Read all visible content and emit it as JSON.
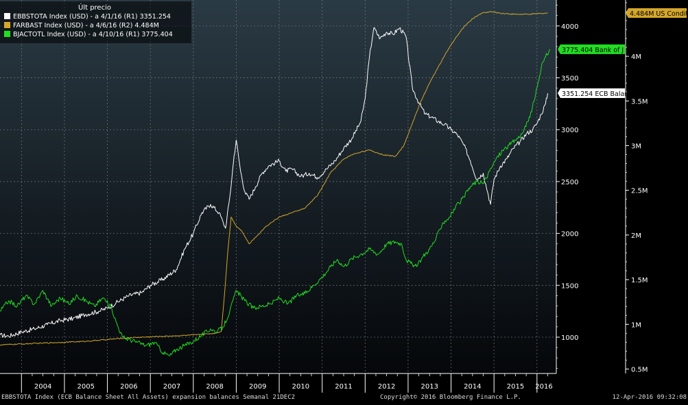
{
  "legend": {
    "header": "Últ precio",
    "items": [
      {
        "label": "EBBSTOTA Index (USD) - a 4/1/16 (R1) 3351.254",
        "color": "#ffffff"
      },
      {
        "label": "FARBAST Index (USD) - a 4/6/16 (R2) 4.484M",
        "color": "#d4a62a"
      },
      {
        "label": "BJACTOTL Index (USD) - a 4/10/16 (R1) 3775.404",
        "color": "#22dd22"
      }
    ]
  },
  "tags": [
    {
      "text": "4.484M US Condit",
      "color": "#d4a62a",
      "text_color": "#000000"
    },
    {
      "text": "3775.404 Bank of J",
      "color": "#22dd22",
      "text_color": "#000000"
    },
    {
      "text": "3351.254 ECB Balan",
      "color": "#ffffff",
      "text_color": "#000000"
    }
  ],
  "footer": {
    "left": "EBBSTOTA Index (ECB Balance Sheet All Assets) expansion balances  Semanal 21DEC2",
    "center": "Copyright© 2016 Bloomberg Finance L.P.",
    "right": "12-Apr-2016 09:32:08"
  },
  "colors": {
    "background_top": "#2a3a44",
    "background_bottom": "#05070a",
    "grid": "#7a8288"
  },
  "chart_data": {
    "type": "line",
    "x_labels": [
      "2004",
      "2005",
      "2006",
      "2007",
      "2008",
      "2009",
      "2010",
      "2011",
      "2012",
      "2013",
      "2014",
      "2015",
      "2016"
    ],
    "xlim": [
      2003.5,
      2016.45
    ],
    "grid": true,
    "legend_position": "top-left",
    "axes": {
      "r1": {
        "ticks": [
          1000,
          1500,
          2000,
          2500,
          3000,
          3500,
          4000
        ],
        "tick_labels": [
          "1000",
          "1500",
          "2000",
          "2500",
          "3000",
          "3500",
          "4000"
        ],
        "ylim": [
          650,
          4250
        ]
      },
      "r2": {
        "ticks": [
          0.5,
          1,
          1.5,
          2,
          2.5,
          3,
          3.5,
          4
        ],
        "tick_labels": [
          "0.5M",
          "1M",
          "1.5M",
          "2M",
          "2.5M",
          "3M",
          "3.5M",
          "4M"
        ],
        "ylim": [
          0.45,
          4.63
        ]
      }
    },
    "series": [
      {
        "name": "EBBSTOTA Index (USD)",
        "axis": "r1",
        "color": "#ffffff",
        "points": [
          [
            2003.5,
            1020
          ],
          [
            2003.7,
            1010
          ],
          [
            2004.0,
            1050
          ],
          [
            2004.3,
            1080
          ],
          [
            2004.6,
            1120
          ],
          [
            2004.9,
            1160
          ],
          [
            2005.2,
            1180
          ],
          [
            2005.5,
            1220
          ],
          [
            2005.8,
            1250
          ],
          [
            2006.0,
            1280
          ],
          [
            2006.2,
            1330
          ],
          [
            2006.5,
            1400
          ],
          [
            2006.8,
            1430
          ],
          [
            2007.0,
            1500
          ],
          [
            2007.3,
            1560
          ],
          [
            2007.6,
            1650
          ],
          [
            2007.8,
            1850
          ],
          [
            2008.0,
            2000
          ],
          [
            2008.2,
            2200
          ],
          [
            2008.4,
            2280
          ],
          [
            2008.6,
            2200
          ],
          [
            2008.7,
            2100
          ],
          [
            2008.75,
            2050
          ],
          [
            2008.85,
            2350
          ],
          [
            2008.95,
            2750
          ],
          [
            2009.0,
            2900
          ],
          [
            2009.1,
            2600
          ],
          [
            2009.2,
            2400
          ],
          [
            2009.3,
            2330
          ],
          [
            2009.45,
            2450
          ],
          [
            2009.6,
            2580
          ],
          [
            2009.75,
            2650
          ],
          [
            2009.9,
            2680
          ],
          [
            2010.0,
            2700
          ],
          [
            2010.15,
            2600
          ],
          [
            2010.3,
            2620
          ],
          [
            2010.5,
            2550
          ],
          [
            2010.7,
            2580
          ],
          [
            2010.9,
            2540
          ],
          [
            2011.1,
            2620
          ],
          [
            2011.3,
            2700
          ],
          [
            2011.5,
            2820
          ],
          [
            2011.7,
            2920
          ],
          [
            2011.9,
            3080
          ],
          [
            2012.0,
            3300
          ],
          [
            2012.1,
            3700
          ],
          [
            2012.2,
            3980
          ],
          [
            2012.35,
            3880
          ],
          [
            2012.5,
            3940
          ],
          [
            2012.65,
            3920
          ],
          [
            2012.8,
            3980
          ],
          [
            2012.95,
            3900
          ],
          [
            2013.1,
            3400
          ],
          [
            2013.25,
            3260
          ],
          [
            2013.4,
            3150
          ],
          [
            2013.55,
            3120
          ],
          [
            2013.7,
            3080
          ],
          [
            2013.85,
            3050
          ],
          [
            2014.0,
            3000
          ],
          [
            2014.15,
            2950
          ],
          [
            2014.3,
            2850
          ],
          [
            2014.45,
            2700
          ],
          [
            2014.6,
            2520
          ],
          [
            2014.75,
            2580
          ],
          [
            2014.85,
            2400
          ],
          [
            2014.92,
            2280
          ],
          [
            2015.0,
            2520
          ],
          [
            2015.15,
            2650
          ],
          [
            2015.3,
            2720
          ],
          [
            2015.45,
            2820
          ],
          [
            2015.6,
            2880
          ],
          [
            2015.75,
            2960
          ],
          [
            2015.9,
            3000
          ],
          [
            2016.0,
            3060
          ],
          [
            2016.1,
            3150
          ],
          [
            2016.2,
            3250
          ],
          [
            2016.25,
            3351.254
          ]
        ]
      },
      {
        "name": "FARBAST Index (USD)",
        "axis": "r2",
        "color": "#d4a62a",
        "points": [
          [
            2003.5,
            0.77
          ],
          [
            2004.0,
            0.78
          ],
          [
            2004.5,
            0.79
          ],
          [
            2005.0,
            0.8
          ],
          [
            2005.5,
            0.81
          ],
          [
            2006.0,
            0.83
          ],
          [
            2006.5,
            0.85
          ],
          [
            2007.0,
            0.86
          ],
          [
            2007.5,
            0.87
          ],
          [
            2008.0,
            0.88
          ],
          [
            2008.5,
            0.9
          ],
          [
            2008.65,
            0.92
          ],
          [
            2008.72,
            1.3
          ],
          [
            2008.8,
            1.8
          ],
          [
            2008.88,
            2.2
          ],
          [
            2009.0,
            2.1
          ],
          [
            2009.12,
            2.05
          ],
          [
            2009.3,
            1.9
          ],
          [
            2009.5,
            2.0
          ],
          [
            2009.7,
            2.1
          ],
          [
            2010.0,
            2.2
          ],
          [
            2010.3,
            2.25
          ],
          [
            2010.6,
            2.3
          ],
          [
            2010.9,
            2.45
          ],
          [
            2011.2,
            2.7
          ],
          [
            2011.5,
            2.85
          ],
          [
            2011.7,
            2.9
          ],
          [
            2011.9,
            2.93
          ],
          [
            2012.1,
            2.95
          ],
          [
            2012.4,
            2.9
          ],
          [
            2012.7,
            2.88
          ],
          [
            2012.9,
            3.0
          ],
          [
            2013.1,
            3.25
          ],
          [
            2013.3,
            3.5
          ],
          [
            2013.5,
            3.7
          ],
          [
            2013.7,
            3.88
          ],
          [
            2013.9,
            4.05
          ],
          [
            2014.1,
            4.2
          ],
          [
            2014.3,
            4.33
          ],
          [
            2014.5,
            4.42
          ],
          [
            2014.7,
            4.48
          ],
          [
            2014.9,
            4.5
          ],
          [
            2015.2,
            4.48
          ],
          [
            2015.5,
            4.47
          ],
          [
            2015.8,
            4.47
          ],
          [
            2016.1,
            4.48
          ],
          [
            2016.25,
            4.484
          ]
        ]
      },
      {
        "name": "BJACTOTL Index (USD)",
        "axis": "r1",
        "color": "#22dd22",
        "points": [
          [
            2003.5,
            1250
          ],
          [
            2003.7,
            1350
          ],
          [
            2003.9,
            1300
          ],
          [
            2004.1,
            1400
          ],
          [
            2004.3,
            1320
          ],
          [
            2004.5,
            1450
          ],
          [
            2004.7,
            1300
          ],
          [
            2004.9,
            1380
          ],
          [
            2005.1,
            1320
          ],
          [
            2005.3,
            1400
          ],
          [
            2005.5,
            1350
          ],
          [
            2005.7,
            1300
          ],
          [
            2005.9,
            1380
          ],
          [
            2006.1,
            1280
          ],
          [
            2006.2,
            1150
          ],
          [
            2006.35,
            1000
          ],
          [
            2006.5,
            980
          ],
          [
            2006.7,
            950
          ],
          [
            2006.9,
            920
          ],
          [
            2007.1,
            950
          ],
          [
            2007.3,
            850
          ],
          [
            2007.45,
            820
          ],
          [
            2007.6,
            880
          ],
          [
            2007.8,
            920
          ],
          [
            2008.0,
            960
          ],
          [
            2008.2,
            1020
          ],
          [
            2008.4,
            1080
          ],
          [
            2008.55,
            1050
          ],
          [
            2008.7,
            1100
          ],
          [
            2008.85,
            1250
          ],
          [
            2009.0,
            1450
          ],
          [
            2009.2,
            1350
          ],
          [
            2009.4,
            1280
          ],
          [
            2009.6,
            1300
          ],
          [
            2009.8,
            1320
          ],
          [
            2010.0,
            1380
          ],
          [
            2010.2,
            1320
          ],
          [
            2010.4,
            1400
          ],
          [
            2010.6,
            1420
          ],
          [
            2010.8,
            1500
          ],
          [
            2011.0,
            1580
          ],
          [
            2011.2,
            1680
          ],
          [
            2011.35,
            1750
          ],
          [
            2011.5,
            1680
          ],
          [
            2011.7,
            1760
          ],
          [
            2011.9,
            1800
          ],
          [
            2012.1,
            1850
          ],
          [
            2012.3,
            1800
          ],
          [
            2012.5,
            1900
          ],
          [
            2012.7,
            1920
          ],
          [
            2012.85,
            1900
          ],
          [
            2012.95,
            1750
          ],
          [
            2013.1,
            1700
          ],
          [
            2013.2,
            1680
          ],
          [
            2013.35,
            1780
          ],
          [
            2013.5,
            1850
          ],
          [
            2013.65,
            1950
          ],
          [
            2013.8,
            2100
          ],
          [
            2013.95,
            2150
          ],
          [
            2014.1,
            2250
          ],
          [
            2014.3,
            2350
          ],
          [
            2014.45,
            2450
          ],
          [
            2014.6,
            2500
          ],
          [
            2014.75,
            2480
          ],
          [
            2014.9,
            2600
          ],
          [
            2015.05,
            2720
          ],
          [
            2015.2,
            2800
          ],
          [
            2015.35,
            2850
          ],
          [
            2015.5,
            2900
          ],
          [
            2015.65,
            2960
          ],
          [
            2015.8,
            3080
          ],
          [
            2015.95,
            3300
          ],
          [
            2016.1,
            3600
          ],
          [
            2016.2,
            3700
          ],
          [
            2016.3,
            3775.404
          ]
        ]
      }
    ]
  }
}
